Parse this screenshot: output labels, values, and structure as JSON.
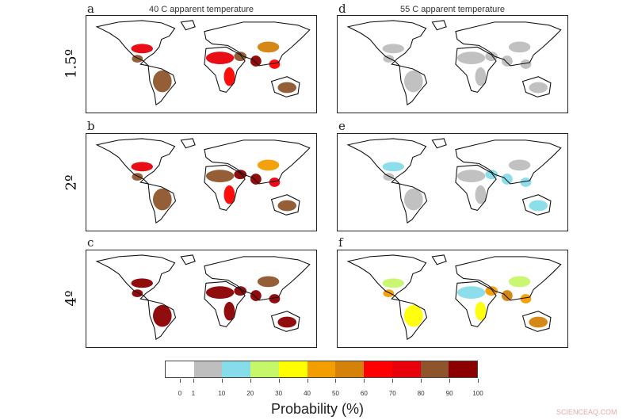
{
  "columns": [
    {
      "letter_top": "a",
      "title": "40 C apparent temperature"
    },
    {
      "letter_top": "d",
      "title": "55 C apparent temperature"
    }
  ],
  "rows": [
    "1.5º",
    "2º",
    "4º"
  ],
  "panels": [
    {
      "id": "a",
      "heat": [
        [
          "us-south",
          70
        ],
        [
          "mexico",
          80
        ],
        [
          "amazon",
          80
        ],
        [
          "sahara",
          70
        ],
        [
          "middle-east",
          80
        ],
        [
          "india",
          90
        ],
        [
          "se-asia",
          60
        ],
        [
          "australia",
          80
        ],
        [
          "east-africa",
          60
        ],
        [
          "china",
          50
        ]
      ]
    },
    {
      "id": "b",
      "heat": [
        [
          "us-south",
          70
        ],
        [
          "mexico",
          80
        ],
        [
          "amazon",
          80
        ],
        [
          "sahara",
          80
        ],
        [
          "middle-east",
          90
        ],
        [
          "india",
          90
        ],
        [
          "se-asia",
          70
        ],
        [
          "australia",
          80
        ],
        [
          "east-africa",
          60
        ],
        [
          "china",
          40
        ]
      ]
    },
    {
      "id": "c",
      "heat": [
        [
          "us-south",
          90
        ],
        [
          "mexico",
          90
        ],
        [
          "amazon",
          100
        ],
        [
          "sahara",
          100
        ],
        [
          "middle-east",
          100
        ],
        [
          "india",
          100
        ],
        [
          "se-asia",
          90
        ],
        [
          "australia",
          90
        ],
        [
          "east-africa",
          90
        ],
        [
          "china",
          80
        ]
      ]
    },
    {
      "id": "d",
      "heat": [
        [
          "us-south",
          1
        ],
        [
          "mexico",
          1
        ],
        [
          "amazon",
          1
        ],
        [
          "sahara",
          1
        ],
        [
          "middle-east",
          1
        ],
        [
          "india",
          1
        ],
        [
          "se-asia",
          1
        ],
        [
          "australia",
          1
        ],
        [
          "east-africa",
          1
        ],
        [
          "china",
          1
        ]
      ]
    },
    {
      "id": "e",
      "heat": [
        [
          "us-south",
          10
        ],
        [
          "mexico",
          1
        ],
        [
          "amazon",
          1
        ],
        [
          "sahara",
          1
        ],
        [
          "middle-east",
          10
        ],
        [
          "india",
          10
        ],
        [
          "se-asia",
          10
        ],
        [
          "australia",
          10
        ],
        [
          "east-africa",
          1
        ],
        [
          "china",
          1
        ]
      ]
    },
    {
      "id": "f",
      "heat": [
        [
          "us-south",
          20
        ],
        [
          "mexico",
          40
        ],
        [
          "amazon",
          30
        ],
        [
          "sahara",
          10
        ],
        [
          "middle-east",
          40
        ],
        [
          "india",
          50
        ],
        [
          "se-asia",
          40
        ],
        [
          "australia",
          50
        ],
        [
          "east-africa",
          30
        ],
        [
          "china",
          20
        ]
      ]
    }
  ],
  "legend": {
    "ticks": [
      "0",
      "1",
      "10",
      "20",
      "30",
      "40",
      "50",
      "60",
      "70",
      "80",
      "90",
      "100"
    ],
    "colors": [
      "#ffffff",
      "#bebebe",
      "#87dcea",
      "#c6f76a",
      "#ffff00",
      "#f29d00",
      "#d4820a",
      "#ff0000",
      "#e8000c",
      "#8e552c",
      "#8b0000"
    ],
    "title": "Probability (%)"
  },
  "watermark": "SCIENCEAQ.COM"
}
